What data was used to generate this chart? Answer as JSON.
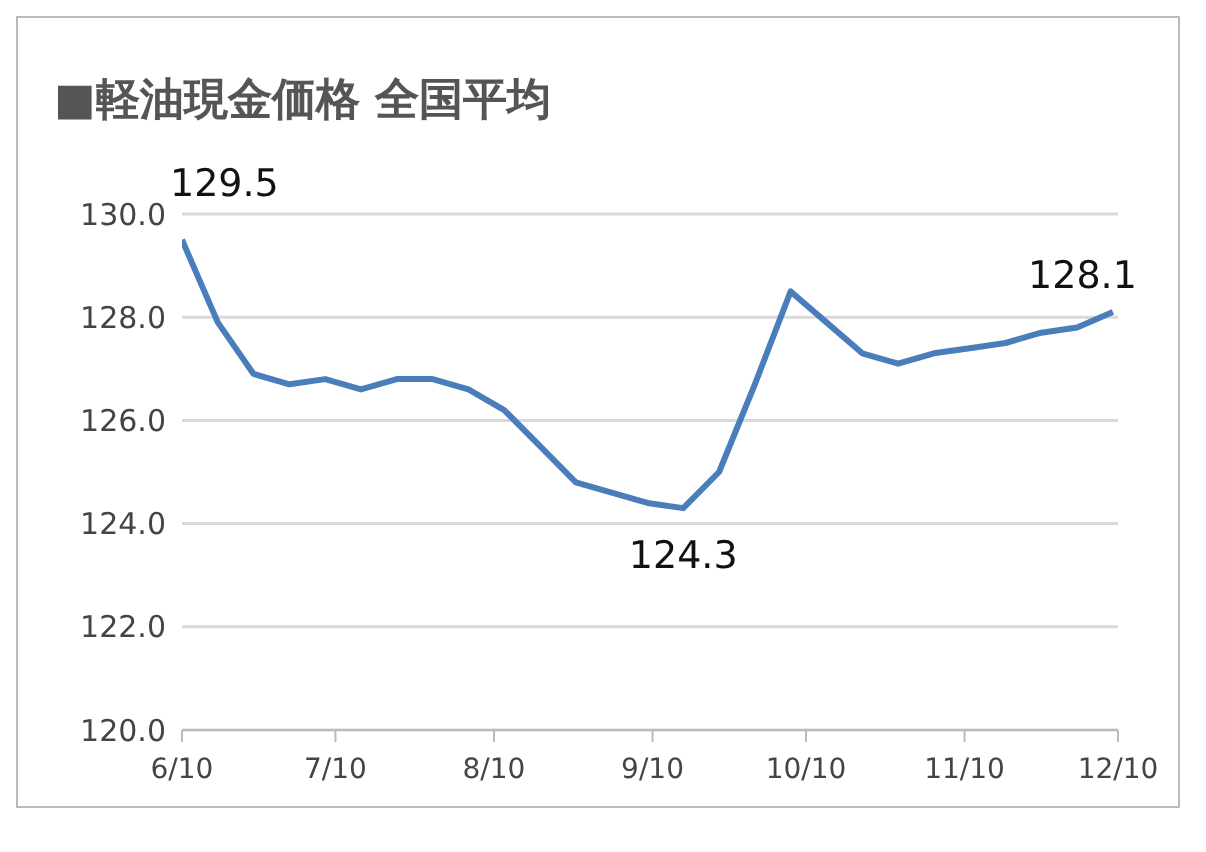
{
  "chart_data": {
    "type": "line",
    "title": "■軽油現金価格 全国平均",
    "x": [
      "--06-10",
      "--06-17",
      "--06-24",
      "--07-01",
      "--07-08",
      "--07-15",
      "--07-22",
      "--07-29",
      "--08-05",
      "--08-12",
      "--08-19",
      "--08-26",
      "--09-02",
      "--09-09",
      "--09-16",
      "--09-23",
      "--09-30",
      "--10-07",
      "--10-14",
      "--10-21",
      "--10-28",
      "--11-04",
      "--11-11",
      "--11-18",
      "--11-25",
      "--12-02",
      "--12-09"
    ],
    "series": [
      {
        "color": "#4a7ebb",
        "values": [
          129.5,
          127.9,
          126.9,
          126.7,
          126.8,
          126.6,
          126.8,
          126.8,
          126.6,
          126.2,
          125.5,
          124.8,
          124.6,
          124.4,
          124.3,
          125.0,
          126.7,
          128.5,
          127.9,
          127.3,
          127.1,
          127.3,
          127.4,
          127.5,
          127.7,
          127.8,
          128.1
        ],
        "value_labels": [
          "129.5",
          null,
          null,
          null,
          null,
          null,
          null,
          null,
          null,
          null,
          null,
          null,
          null,
          null,
          "124.3",
          null,
          null,
          null,
          null,
          null,
          null,
          null,
          null,
          null,
          null,
          null,
          "128.1"
        ]
      }
    ],
    "xlim": [
      "--06-10",
      "--12-10"
    ],
    "xticks": [
      {
        "value": "--06-10",
        "label": "6/10"
      },
      {
        "value": "--07-10",
        "label": "7/10"
      },
      {
        "value": "--08-10",
        "label": "8/10"
      },
      {
        "value": "--09-10",
        "label": "9/10"
      },
      {
        "value": "--10-10",
        "label": "10/10"
      },
      {
        "value": "--11-10",
        "label": "11/10"
      },
      {
        "value": "--12-10",
        "label": "12/10"
      }
    ],
    "ylim": [
      120,
      130
    ],
    "yticks": [
      {
        "value": 120,
        "label": "120.0"
      },
      {
        "value": 122,
        "label": "122.0"
      },
      {
        "value": 124,
        "label": "124.0"
      },
      {
        "value": 126,
        "label": "126.0"
      },
      {
        "value": 128,
        "label": "128.0"
      },
      {
        "value": 130,
        "label": "130.0"
      }
    ],
    "grid": "y",
    "legend": false,
    "marker": "none",
    "line_style": "solid"
  }
}
